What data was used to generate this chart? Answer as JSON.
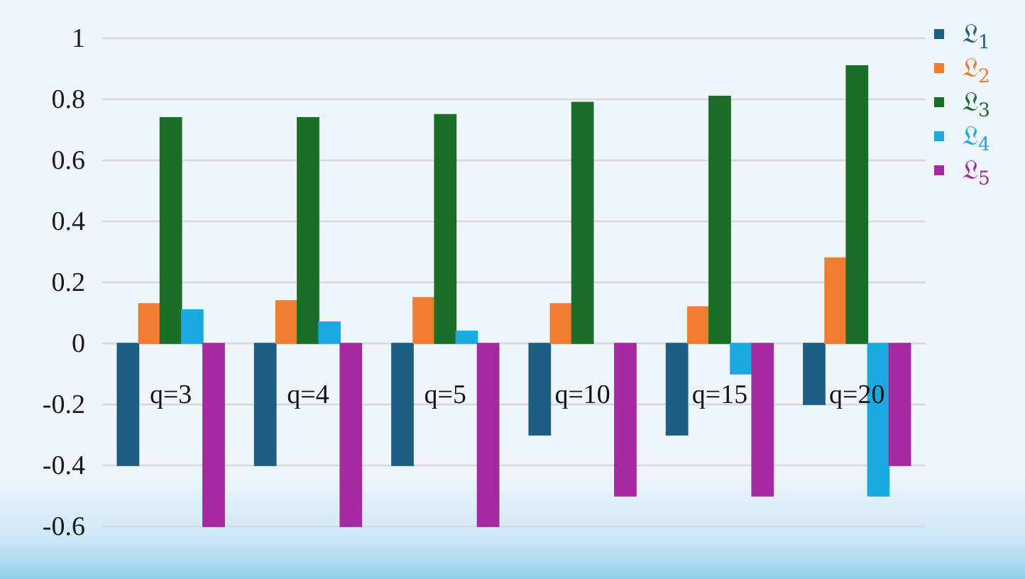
{
  "chart_data": {
    "type": "bar",
    "categories": [
      "q=3",
      "q=4",
      "q=5",
      "q=10",
      "q=15",
      "q=20"
    ],
    "series": [
      {
        "name": "𝔏$_{1}$",
        "color": "#1c5f82",
        "values": [
          -0.4,
          -0.4,
          -0.4,
          -0.3,
          -0.3,
          -0.2
        ]
      },
      {
        "name": "𝔏$_{2}$",
        "color": "#f07c30",
        "values": [
          0.13,
          0.14,
          0.15,
          0.13,
          0.12,
          0.28
        ]
      },
      {
        "name": "𝔏$_{3}$",
        "color": "#1b6e27",
        "values": [
          0.74,
          0.74,
          0.75,
          0.79,
          0.81,
          0.91
        ]
      },
      {
        "name": "𝔏$_{4}$",
        "color": "#1aa9e0",
        "values": [
          0.11,
          0.07,
          0.04,
          0,
          -0.1,
          -0.5
        ]
      },
      {
        "name": "𝔏$_{5}$",
        "color": "#a52a9f",
        "values": [
          -0.6,
          -0.6,
          -0.6,
          -0.5,
          -0.5,
          -0.4
        ]
      }
    ],
    "ylim": [
      -0.6,
      1
    ],
    "yticks": [
      -0.6,
      -0.4,
      -0.2,
      0,
      0.2,
      0.4,
      0.6,
      0.8,
      1
    ],
    "grid": "y",
    "legend": "top right"
  }
}
